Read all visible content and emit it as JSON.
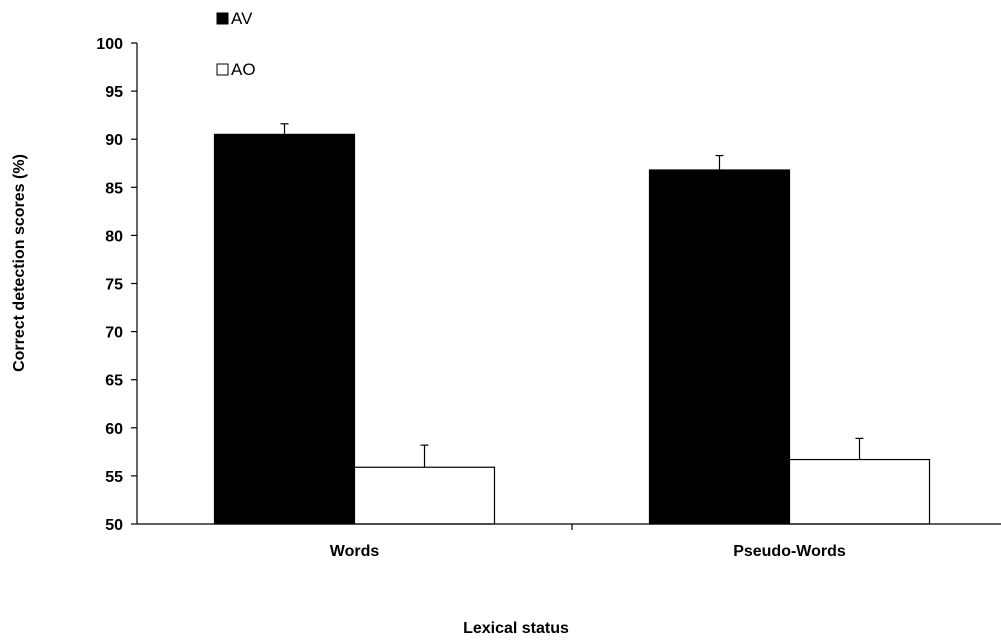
{
  "chart_data": {
    "type": "bar",
    "categories": [
      "Words",
      "Pseudo-Words"
    ],
    "series": [
      {
        "name": "AV",
        "values": [
          90.5,
          86.8
        ],
        "errors": [
          1.1,
          1.5
        ],
        "color": "#000000"
      },
      {
        "name": "AO",
        "values": [
          55.9,
          56.7
        ],
        "errors": [
          2.3,
          2.2
        ],
        "color": "#ffffff"
      }
    ],
    "xlabel": "Lexical status",
    "ylabel": "Correct detection scores (%)",
    "ylim": [
      50,
      100
    ],
    "yticks": [
      50,
      55,
      60,
      65,
      70,
      75,
      80,
      85,
      90,
      95,
      100
    ],
    "grid": false,
    "legend": "top-left"
  }
}
